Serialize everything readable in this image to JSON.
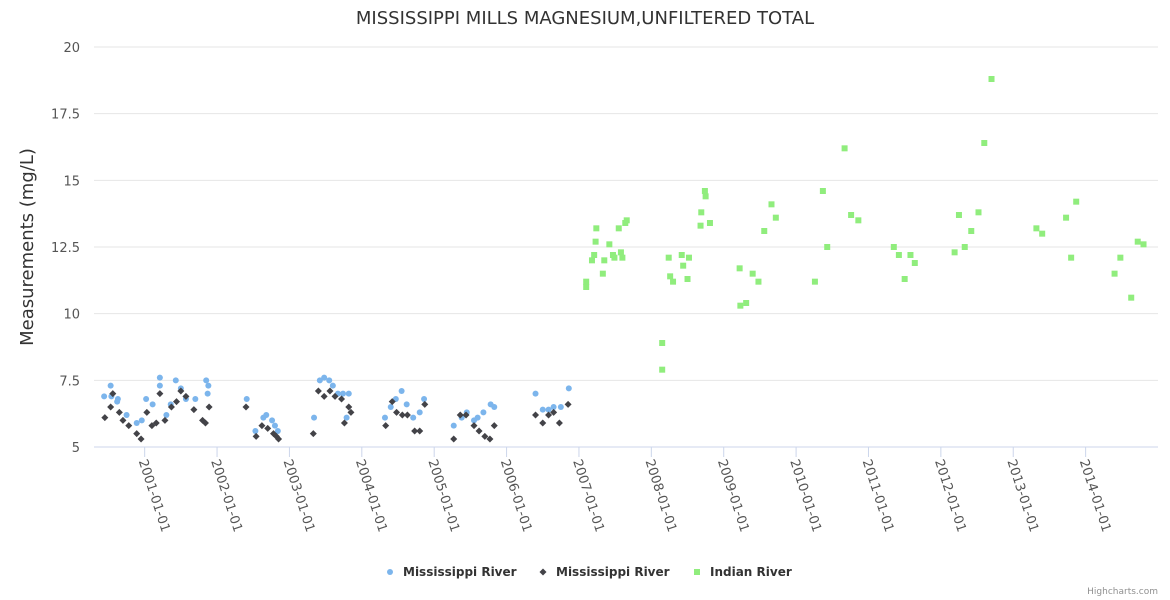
{
  "chart_data": {
    "type": "scatter",
    "title": "MISSISSIPPI MILLS MAGNESIUM,UNFILTERED TOTAL",
    "xlabel": "",
    "ylabel": "Measurements (mg/L)",
    "ylim": [
      5,
      20
    ],
    "yticks": [
      "5",
      "7.5",
      "10",
      "12.5",
      "15",
      "17.5",
      "20"
    ],
    "xlim": [
      2000.3,
      2015.0
    ],
    "xticks": [
      {
        "value": 2001.0,
        "label": "2001-01-01"
      },
      {
        "value": 2002.0,
        "label": "2002-01-01"
      },
      {
        "value": 2003.0,
        "label": "2003-01-01"
      },
      {
        "value": 2004.0,
        "label": "2004-01-01"
      },
      {
        "value": 2005.0,
        "label": "2005-01-01"
      },
      {
        "value": 2006.0,
        "label": "2006-01-01"
      },
      {
        "value": 2007.0,
        "label": "2007-01-01"
      },
      {
        "value": 2008.0,
        "label": "2008-01-01"
      },
      {
        "value": 2009.0,
        "label": "2009-01-01"
      },
      {
        "value": 2010.0,
        "label": "2010-01-01"
      },
      {
        "value": 2011.0,
        "label": "2011-01-01"
      },
      {
        "value": 2012.0,
        "label": "2012-01-01"
      },
      {
        "value": 2013.0,
        "label": "2013-01-01"
      },
      {
        "value": 2014.0,
        "label": "2014-01-01"
      }
    ],
    "legend_position": "bottom-center",
    "credits": "Highcharts.com",
    "series": [
      {
        "name": "Mississippi River",
        "marker": "circle",
        "color": "#7cb5ec",
        "points": [
          [
            2000.44,
            6.9
          ],
          [
            2000.53,
            7.3
          ],
          [
            2000.54,
            6.9
          ],
          [
            2000.62,
            6.7
          ],
          [
            2000.63,
            6.8
          ],
          [
            2000.75,
            6.2
          ],
          [
            2000.89,
            5.9
          ],
          [
            2000.96,
            6.0
          ],
          [
            2001.02,
            6.8
          ],
          [
            2001.11,
            6.6
          ],
          [
            2001.21,
            7.6
          ],
          [
            2001.21,
            7.3
          ],
          [
            2001.3,
            6.2
          ],
          [
            2001.36,
            6.6
          ],
          [
            2001.43,
            7.5
          ],
          [
            2001.5,
            7.2
          ],
          [
            2001.57,
            6.8
          ],
          [
            2001.7,
            6.8
          ],
          [
            2001.85,
            7.5
          ],
          [
            2001.88,
            7.3
          ],
          [
            2001.87,
            7.0
          ],
          [
            2002.41,
            6.8
          ],
          [
            2002.53,
            5.6
          ],
          [
            2002.64,
            6.1
          ],
          [
            2002.68,
            6.2
          ],
          [
            2002.76,
            6.0
          ],
          [
            2002.8,
            5.8
          ],
          [
            2002.84,
            5.6
          ],
          [
            2003.34,
            6.1
          ],
          [
            2003.42,
            7.5
          ],
          [
            2003.48,
            7.6
          ],
          [
            2003.55,
            7.5
          ],
          [
            2003.6,
            7.3
          ],
          [
            2003.67,
            7.0
          ],
          [
            2003.74,
            7.0
          ],
          [
            2003.82,
            7.0
          ],
          [
            2003.79,
            6.1
          ],
          [
            2004.32,
            6.1
          ],
          [
            2004.4,
            6.5
          ],
          [
            2004.47,
            6.8
          ],
          [
            2004.55,
            7.1
          ],
          [
            2004.62,
            6.6
          ],
          [
            2004.71,
            6.1
          ],
          [
            2004.8,
            6.3
          ],
          [
            2004.86,
            6.8
          ],
          [
            2005.27,
            5.8
          ],
          [
            2005.38,
            6.1
          ],
          [
            2005.45,
            6.3
          ],
          [
            2005.55,
            6.0
          ],
          [
            2005.6,
            6.1
          ],
          [
            2005.68,
            6.3
          ],
          [
            2005.78,
            6.6
          ],
          [
            2005.83,
            6.5
          ],
          [
            2006.4,
            7.0
          ],
          [
            2006.5,
            6.4
          ],
          [
            2006.58,
            6.4
          ],
          [
            2006.65,
            6.5
          ],
          [
            2006.75,
            6.5
          ],
          [
            2006.86,
            7.2
          ]
        ]
      },
      {
        "name": "Mississippi River",
        "marker": "diamond",
        "color": "#434348",
        "points": [
          [
            2000.45,
            6.1
          ],
          [
            2000.53,
            6.5
          ],
          [
            2000.56,
            7.0
          ],
          [
            2000.65,
            6.3
          ],
          [
            2000.7,
            6.0
          ],
          [
            2000.78,
            5.8
          ],
          [
            2000.89,
            5.5
          ],
          [
            2000.95,
            5.3
          ],
          [
            2001.03,
            6.3
          ],
          [
            2001.1,
            5.8
          ],
          [
            2001.16,
            5.9
          ],
          [
            2001.21,
            7.0
          ],
          [
            2001.28,
            6.0
          ],
          [
            2001.37,
            6.5
          ],
          [
            2001.44,
            6.7
          ],
          [
            2001.5,
            7.1
          ],
          [
            2001.57,
            6.9
          ],
          [
            2001.68,
            6.4
          ],
          [
            2001.8,
            6.0
          ],
          [
            2001.84,
            5.9
          ],
          [
            2001.89,
            6.5
          ],
          [
            2002.4,
            6.5
          ],
          [
            2002.54,
            5.4
          ],
          [
            2002.62,
            5.8
          ],
          [
            2002.7,
            5.7
          ],
          [
            2002.78,
            5.5
          ],
          [
            2002.82,
            5.4
          ],
          [
            2002.85,
            5.3
          ],
          [
            2003.33,
            5.5
          ],
          [
            2003.4,
            7.1
          ],
          [
            2003.48,
            6.9
          ],
          [
            2003.56,
            7.1
          ],
          [
            2003.63,
            6.9
          ],
          [
            2003.72,
            6.8
          ],
          [
            2003.76,
            5.9
          ],
          [
            2003.82,
            6.5
          ],
          [
            2003.85,
            6.3
          ],
          [
            2004.33,
            5.8
          ],
          [
            2004.42,
            6.7
          ],
          [
            2004.48,
            6.3
          ],
          [
            2004.56,
            6.2
          ],
          [
            2004.63,
            6.2
          ],
          [
            2004.73,
            5.6
          ],
          [
            2004.8,
            5.6
          ],
          [
            2004.87,
            6.6
          ],
          [
            2005.27,
            5.3
          ],
          [
            2005.36,
            6.2
          ],
          [
            2005.44,
            6.2
          ],
          [
            2005.55,
            5.8
          ],
          [
            2005.62,
            5.6
          ],
          [
            2005.7,
            5.4
          ],
          [
            2005.77,
            5.3
          ],
          [
            2005.83,
            5.8
          ],
          [
            2006.4,
            6.2
          ],
          [
            2006.5,
            5.9
          ],
          [
            2006.58,
            6.2
          ],
          [
            2006.65,
            6.3
          ],
          [
            2006.73,
            5.9
          ],
          [
            2006.85,
            6.6
          ]
        ]
      },
      {
        "name": "Indian River",
        "marker": "square",
        "color": "#90ed7d",
        "points": [
          [
            2007.1,
            11.0
          ],
          [
            2007.1,
            11.2
          ],
          [
            2007.18,
            12.0
          ],
          [
            2007.21,
            12.2
          ],
          [
            2007.23,
            12.7
          ],
          [
            2007.24,
            13.2
          ],
          [
            2007.33,
            11.5
          ],
          [
            2007.35,
            12.0
          ],
          [
            2007.42,
            12.6
          ],
          [
            2007.47,
            12.2
          ],
          [
            2007.49,
            12.1
          ],
          [
            2007.55,
            13.2
          ],
          [
            2007.58,
            12.3
          ],
          [
            2007.64,
            13.4
          ],
          [
            2007.66,
            13.5
          ],
          [
            2007.6,
            12.1
          ],
          [
            2008.15,
            8.9
          ],
          [
            2008.15,
            7.9
          ],
          [
            2008.24,
            12.1
          ],
          [
            2008.26,
            11.4
          ],
          [
            2008.3,
            11.2
          ],
          [
            2008.42,
            12.2
          ],
          [
            2008.44,
            11.8
          ],
          [
            2008.52,
            12.1
          ],
          [
            2008.5,
            11.3
          ],
          [
            2008.68,
            13.3
          ],
          [
            2008.69,
            13.8
          ],
          [
            2008.74,
            14.6
          ],
          [
            2008.75,
            14.4
          ],
          [
            2008.81,
            13.4
          ],
          [
            2009.22,
            11.7
          ],
          [
            2009.23,
            10.3
          ],
          [
            2009.31,
            10.4
          ],
          [
            2009.4,
            11.5
          ],
          [
            2009.48,
            11.2
          ],
          [
            2009.56,
            13.1
          ],
          [
            2009.66,
            14.1
          ],
          [
            2009.72,
            13.6
          ],
          [
            2010.26,
            11.2
          ],
          [
            2010.37,
            14.6
          ],
          [
            2010.43,
            12.5
          ],
          [
            2010.67,
            16.2
          ],
          [
            2010.76,
            13.7
          ],
          [
            2010.86,
            13.5
          ],
          [
            2011.35,
            12.5
          ],
          [
            2011.42,
            12.2
          ],
          [
            2011.5,
            11.3
          ],
          [
            2011.58,
            12.2
          ],
          [
            2011.64,
            11.9
          ],
          [
            2012.19,
            12.3
          ],
          [
            2012.25,
            13.7
          ],
          [
            2012.33,
            12.5
          ],
          [
            2012.42,
            13.1
          ],
          [
            2012.52,
            13.8
          ],
          [
            2012.6,
            16.4
          ],
          [
            2012.7,
            18.8
          ],
          [
            2013.32,
            13.2
          ],
          [
            2013.4,
            13.0
          ],
          [
            2013.73,
            13.6
          ],
          [
            2013.8,
            12.1
          ],
          [
            2013.87,
            14.2
          ],
          [
            2014.4,
            11.5
          ],
          [
            2014.48,
            12.1
          ],
          [
            2014.63,
            10.6
          ],
          [
            2014.72,
            12.7
          ],
          [
            2014.8,
            12.6
          ]
        ]
      }
    ]
  }
}
